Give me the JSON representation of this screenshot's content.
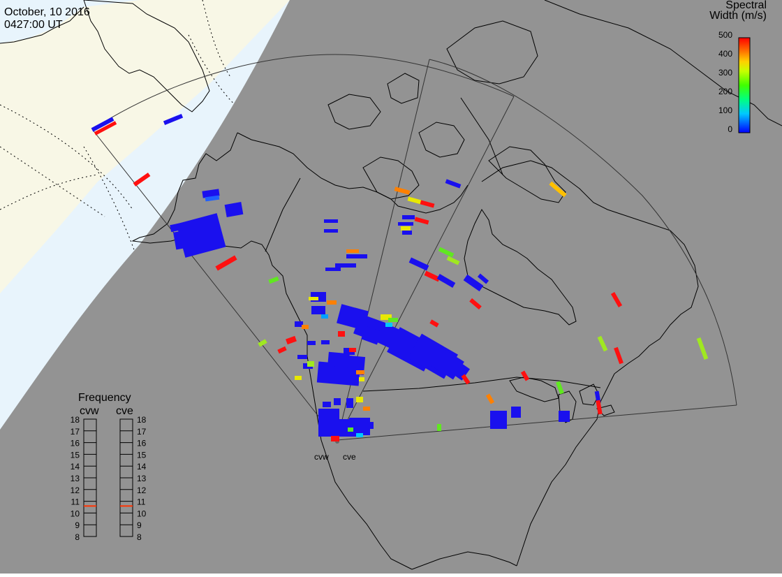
{
  "header": {
    "date": "October, 10 2016",
    "time": "0427:00 UT"
  },
  "colorbar": {
    "title_line1": "Spectral",
    "title_line2": "Width (m/s)",
    "ticks": [
      "500",
      "400",
      "300",
      "200",
      "100",
      "0"
    ]
  },
  "radars": {
    "west_label": "cvw",
    "east_label": "cve"
  },
  "frequency_panel": {
    "title": "Frequency",
    "west_label": "cvw",
    "east_label": "cve",
    "ticks": [
      "18",
      "17",
      "16",
      "15",
      "14",
      "13",
      "12",
      "11",
      "10",
      "9",
      "8"
    ],
    "west_value_mhz": 10.6,
    "east_value_mhz": 10.6,
    "marker_color": "#ff3300"
  },
  "colors": {
    "night_shade": "#939393",
    "day_ocean": "#e8f4fc",
    "day_land": "#f8f7e6",
    "coast": "#000000",
    "fov_line": "#333333",
    "echo_low": "#1a10ee",
    "echo_high": "#ff1010"
  }
}
